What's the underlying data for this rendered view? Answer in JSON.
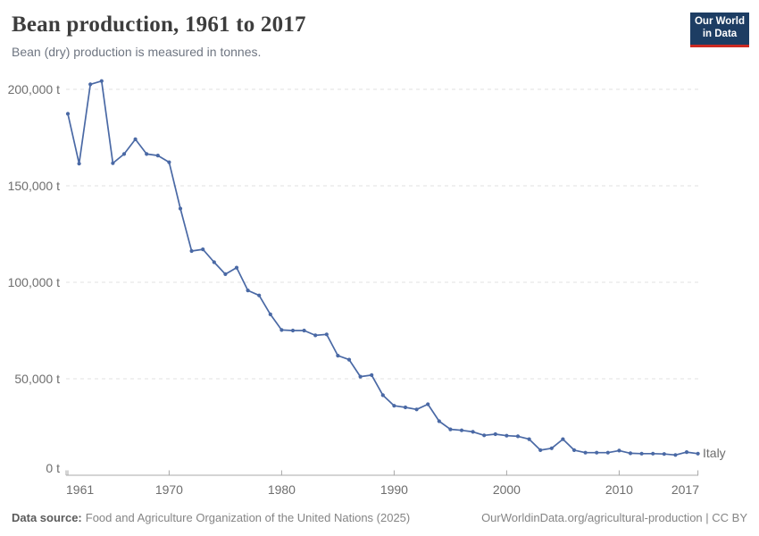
{
  "header": {
    "title": "Bean production, 1961 to 2017",
    "subtitle": "Bean (dry) production is measured in tonnes."
  },
  "logo": {
    "line1": "Our World",
    "line2": "in Data"
  },
  "chart_data": {
    "type": "line",
    "title": "Bean production, 1961 to 2017",
    "unit": "tonnes",
    "x": [
      1961,
      1962,
      1963,
      1964,
      1965,
      1966,
      1967,
      1968,
      1969,
      1970,
      1971,
      1972,
      1973,
      1974,
      1975,
      1976,
      1977,
      1978,
      1979,
      1980,
      1981,
      1982,
      1983,
      1984,
      1985,
      1986,
      1987,
      1988,
      1989,
      1990,
      1991,
      1992,
      1993,
      1994,
      1995,
      1996,
      1997,
      1998,
      1999,
      2000,
      2001,
      2002,
      2003,
      2004,
      2005,
      2006,
      2007,
      2008,
      2009,
      2010,
      2011,
      2012,
      2013,
      2014,
      2015,
      2016,
      2017
    ],
    "series": [
      {
        "name": "Italy",
        "color": "#4a69a5",
        "values": [
          187300,
          161500,
          202600,
          204300,
          161700,
          166500,
          174100,
          166500,
          165700,
          162200,
          138200,
          116200,
          117100,
          110400,
          104200,
          107600,
          95800,
          93200,
          83400,
          75300,
          75000,
          75000,
          72500,
          73000,
          62000,
          59900,
          51100,
          51900,
          41500,
          36000,
          35200,
          34100,
          36800,
          28000,
          23800,
          23300,
          22500,
          20700,
          21300,
          20500,
          20200,
          18700,
          13000,
          14000,
          18700,
          13000,
          11700,
          11700,
          11700,
          12800,
          11400,
          11200,
          11200,
          11000,
          10500,
          12000,
          11200
        ]
      }
    ],
    "x_ticks": {
      "values": [
        1961,
        1970,
        1980,
        1990,
        2000,
        2010,
        2017
      ],
      "labels": [
        "1961",
        "1970",
        "1980",
        "1990",
        "2000",
        "2010",
        "2017"
      ]
    },
    "y_ticks": {
      "values": [
        0,
        50000,
        100000,
        150000,
        200000
      ],
      "labels": [
        "0 t",
        "50,000 t",
        "100,000 t",
        "150,000 t",
        "200,000 t"
      ]
    },
    "xlim": [
      1961,
      2017
    ],
    "ylim": [
      0,
      200000
    ],
    "grid": "horizontal-dashed",
    "legend_position": "end-of-line"
  },
  "colors": {
    "series_blue": "#4a69a5",
    "grid": "#e0e0e0",
    "axis": "#a8a8a8",
    "tick_text": "#6e6e6e",
    "logo_navy": "#1d3d63",
    "logo_red": "#cc2a22"
  },
  "footer": {
    "source_label": "Data source:",
    "source_text": "Food and Agriculture Organization of the United Nations (2025)",
    "link_text": "OurWorldinData.org/agricultural-production | CC BY"
  }
}
